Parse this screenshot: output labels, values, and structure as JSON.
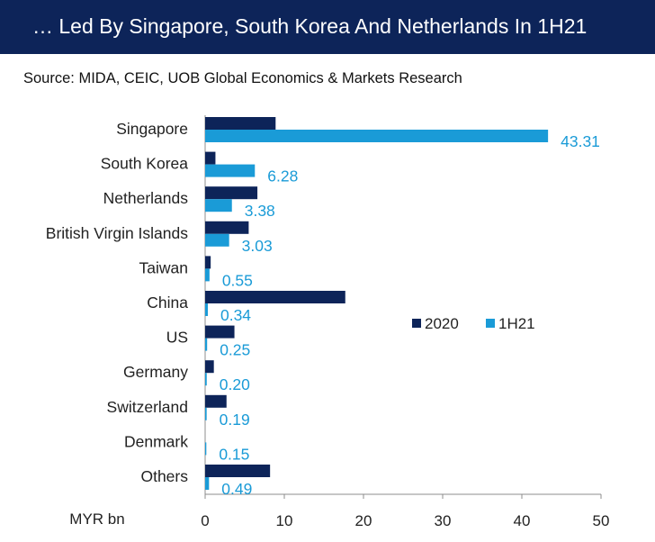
{
  "title": "… Led By Singapore, South Korea And Netherlands In 1H21",
  "source": "Source: MIDA, CEIC, UOB Global Economics & Markets Research",
  "chart_data": {
    "type": "bar",
    "orientation": "horizontal",
    "categories": [
      "Singapore",
      "South Korea",
      "Netherlands",
      "British Virgin Islands",
      "Taiwan",
      "China",
      "US",
      "Germany",
      "Switzerland",
      "Denmark",
      "Others"
    ],
    "series": [
      {
        "name": "2020",
        "color": "#0d2459",
        "values": [
          8.9,
          1.3,
          6.6,
          5.5,
          0.7,
          17.7,
          3.7,
          1.1,
          2.7,
          0.0,
          8.2
        ]
      },
      {
        "name": "1H21",
        "color": "#1a9bd7",
        "values": [
          43.31,
          6.28,
          3.38,
          3.03,
          0.55,
          0.34,
          0.25,
          0.2,
          0.19,
          0.15,
          0.49
        ]
      }
    ],
    "data_labels": [
      "43.31",
      "6.28",
      "3.38",
      "3.03",
      "0.55",
      "0.34",
      "0.25",
      "0.20",
      "0.19",
      "0.15",
      "0.49"
    ],
    "xlabel": "MYR bn",
    "xlim": [
      0,
      50
    ],
    "xticks": [
      "0",
      "10",
      "20",
      "30",
      "40",
      "50"
    ],
    "legend_position": "right",
    "grid": false,
    "label_color": "#1a9bd7"
  }
}
